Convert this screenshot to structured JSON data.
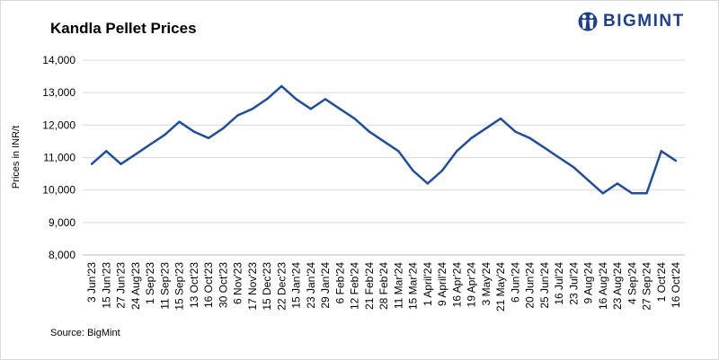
{
  "title": "Kandla Pellet Prices",
  "brand": {
    "name": "BIGMINT",
    "color": "#1f3f8f",
    "icon": "bigmint-people-icon"
  },
  "source": "Source: BigMint",
  "chart_data": {
    "type": "line",
    "ylabel": "Prices in INR/t",
    "ylim": [
      8000,
      14000
    ],
    "yticks": [
      8000,
      9000,
      10000,
      11000,
      12000,
      13000,
      14000
    ],
    "ytick_labels": [
      "8,000",
      "9,000",
      "10,000",
      "11,000",
      "12,000",
      "13,000",
      "14,000"
    ],
    "grid": true,
    "line_color": "#1f4e9c",
    "categories": [
      "3 Jun'23",
      "15 Jun'23",
      "27 Jun'23",
      "24 Aug'23",
      "1 Sep'23",
      "11 Sep'23",
      "15 Sep'23",
      "13 Oct'23",
      "16 Oct'23",
      "30 Oct'23",
      "6 Nov'23",
      "17 Nov'23",
      "15 Dec'23",
      "22 Dec'23",
      "15 Jan'24",
      "23 Jan'24",
      "29 Jan'24",
      "6 Feb'24",
      "12 Feb'24",
      "21 Feb'24",
      "28 Feb'24",
      "11 Mar'24",
      "15 Mar'24",
      "1 April'24",
      "9 April'24",
      "16 Apr'24",
      "19 Apr'24",
      "3 May'24",
      "21 May'24",
      "6 Jun'24",
      "20 Jun'24",
      "25 Jun'24",
      "16 Jul'24",
      "23 Jul'24",
      "9 Aug'24",
      "16 Aug'24",
      "23 Aug'24",
      "4 Sep'24",
      "27 Sep'24",
      "1 Oct'24",
      "16 Oct'24"
    ],
    "series": [
      {
        "values": [
          10800,
          11200,
          10800,
          11100,
          11400,
          11700,
          12100,
          11800,
          11600,
          11900,
          12300,
          12500,
          12800,
          13200,
          12800,
          12500,
          12800,
          12500,
          12200,
          11800,
          11500,
          11200,
          10600,
          10200,
          10600,
          11200,
          11600,
          11900,
          12200,
          11800,
          11600,
          11300,
          11000,
          10700,
          10300,
          9900,
          10200,
          9900,
          9900,
          11200,
          10900
        ]
      }
    ]
  }
}
